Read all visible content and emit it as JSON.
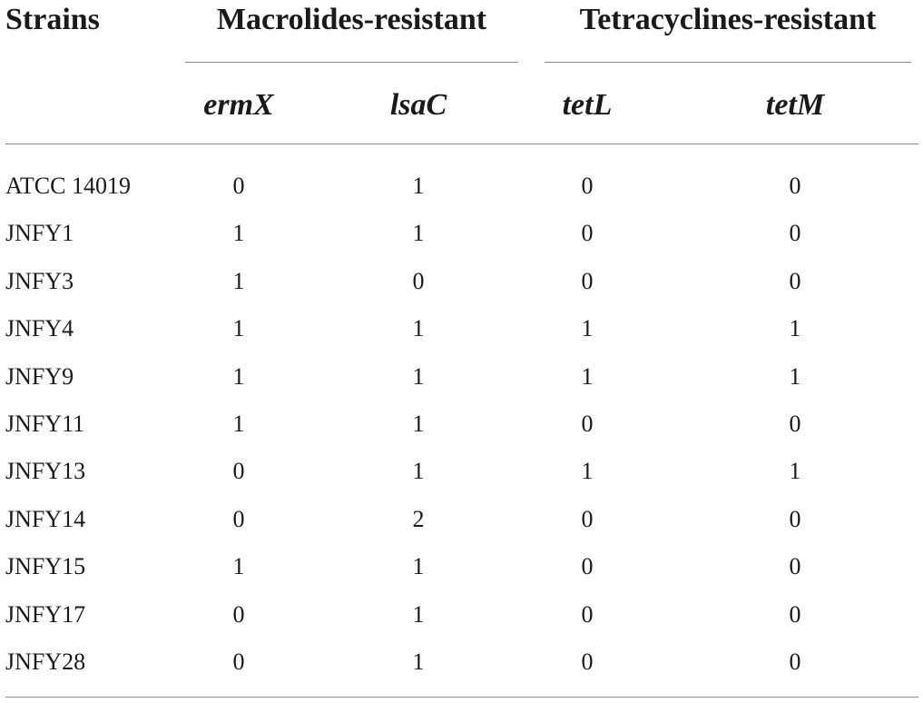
{
  "header": {
    "strains": "Strains",
    "group_macrolides": "Macrolides-resistant",
    "group_tetracyclines": "Tetracyclines-resistant",
    "genes": [
      "ermX",
      "lsaC",
      "tetL",
      "tetM"
    ]
  },
  "rows": [
    {
      "strain": "ATCC 14019",
      "values": [
        "0",
        "1",
        "0",
        "0"
      ]
    },
    {
      "strain": "JNFY1",
      "values": [
        "1",
        "1",
        "0",
        "0"
      ]
    },
    {
      "strain": "JNFY3",
      "values": [
        "1",
        "0",
        "0",
        "0"
      ]
    },
    {
      "strain": "JNFY4",
      "values": [
        "1",
        "1",
        "1",
        "1"
      ]
    },
    {
      "strain": "JNFY9",
      "values": [
        "1",
        "1",
        "1",
        "1"
      ]
    },
    {
      "strain": "JNFY11",
      "values": [
        "1",
        "1",
        "0",
        "0"
      ]
    },
    {
      "strain": "JNFY13",
      "values": [
        "0",
        "1",
        "1",
        "1"
      ]
    },
    {
      "strain": "JNFY14",
      "values": [
        "0",
        "2",
        "0",
        "0"
      ]
    },
    {
      "strain": "JNFY15",
      "values": [
        "1",
        "1",
        "0",
        "0"
      ]
    },
    {
      "strain": "JNFY17",
      "values": [
        "0",
        "1",
        "0",
        "0"
      ]
    },
    {
      "strain": "JNFY28",
      "values": [
        "0",
        "1",
        "0",
        "0"
      ]
    }
  ]
}
